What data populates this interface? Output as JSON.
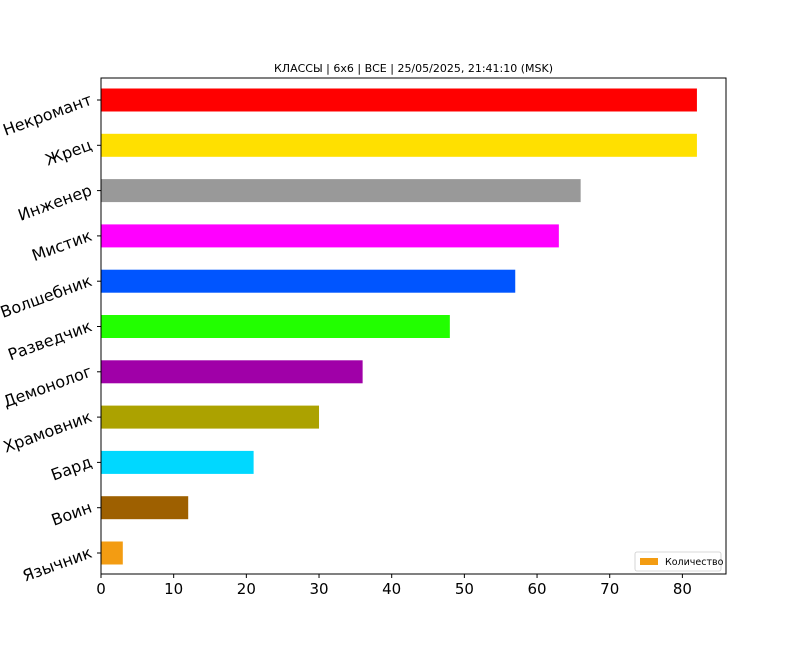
{
  "chart_data": {
    "type": "bar",
    "orientation": "horizontal",
    "title": "КЛАССЫ | 6x6 | ВСЕ | 25/05/2025, 21:41:10 (MSK)",
    "xlabel": "",
    "ylabel": "",
    "xlim": [
      0,
      86
    ],
    "xticks": [
      0,
      10,
      20,
      30,
      40,
      50,
      60,
      70,
      80
    ],
    "grid": false,
    "legend_position": "lower-right",
    "legend_label": "Количество",
    "legend_color": "#f39c12",
    "categories": [
      "Некромант",
      "Жрец",
      "Инженер",
      "Мистик",
      "Волшебник",
      "Разведчик",
      "Демонолог",
      "Храмовник",
      "Бард",
      "Воин",
      "Язычник"
    ],
    "values": [
      82,
      82,
      66,
      63,
      57,
      48,
      36,
      30,
      21,
      12,
      3
    ],
    "colors": [
      "#ff0000",
      "#ffe000",
      "#999999",
      "#ff00ff",
      "#0055ff",
      "#22ff00",
      "#a000a8",
      "#aca200",
      "#00d8ff",
      "#9e6000",
      "#f39c12"
    ]
  }
}
